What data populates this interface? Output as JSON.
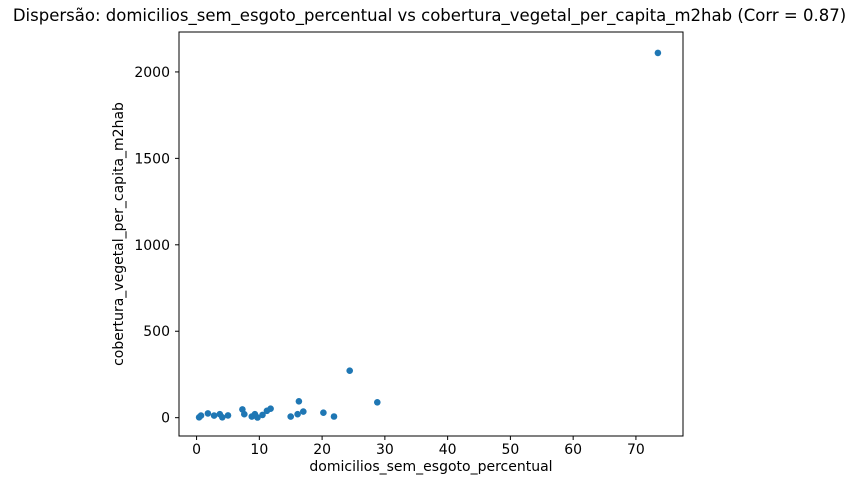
{
  "chart_data": {
    "type": "scatter",
    "title": "Dispersão: domicilios_sem_esgoto_percentual vs cobertura_vegetal_per_capita_m2hab (Corr = 0.87)",
    "xlabel": "domicilios_sem_esgoto_percentual",
    "ylabel": "cobertura_vegetal_per_capita_m2hab",
    "correlation": 0.87,
    "point_color": "#1f77b4",
    "axis_color": "#000000",
    "background_color": "#ffffff",
    "grid": false,
    "legend_position": "none",
    "xlim": [
      -2.8,
      77.5
    ],
    "ylim": [
      -106,
      2231
    ],
    "x_ticks": [
      0,
      10,
      20,
      30,
      40,
      50,
      60,
      70
    ],
    "y_ticks": [
      0,
      500,
      1000,
      1500,
      2000
    ],
    "points": [
      [
        0.4,
        2
      ],
      [
        0.7,
        12
      ],
      [
        1.8,
        25
      ],
      [
        2.8,
        12
      ],
      [
        3.7,
        20
      ],
      [
        4.1,
        2
      ],
      [
        5.0,
        13
      ],
      [
        7.3,
        48
      ],
      [
        7.6,
        20
      ],
      [
        8.8,
        6
      ],
      [
        9.3,
        20
      ],
      [
        9.7,
        1
      ],
      [
        10.5,
        16
      ],
      [
        11.2,
        40
      ],
      [
        11.8,
        52
      ],
      [
        15.0,
        6
      ],
      [
        16.1,
        20
      ],
      [
        16.3,
        95
      ],
      [
        17.0,
        35
      ],
      [
        20.2,
        29
      ],
      [
        21.9,
        7
      ],
      [
        24.4,
        272
      ],
      [
        28.8,
        89
      ],
      [
        73.5,
        2110
      ]
    ]
  }
}
